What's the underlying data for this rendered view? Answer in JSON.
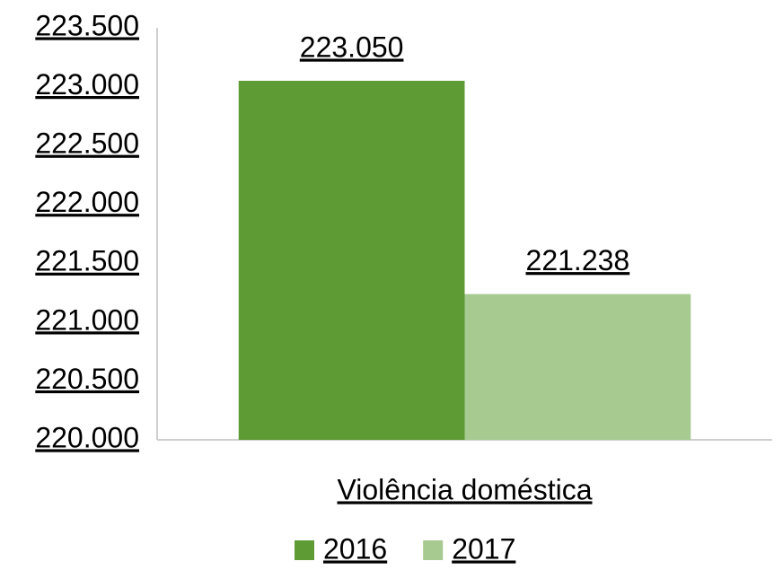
{
  "chart_data": {
    "type": "bar",
    "categories": [
      "Violência doméstica"
    ],
    "series": [
      {
        "name": "2016",
        "color": "#5f9b35",
        "values": [
          223050
        ],
        "value_labels": [
          "223.050"
        ]
      },
      {
        "name": "2017",
        "color": "#a6ca8f",
        "values": [
          221238
        ],
        "value_labels": [
          "221.238"
        ]
      }
    ],
    "ylim": [
      220000,
      223500
    ],
    "yticks": [
      {
        "value": 220000,
        "label": "220.000"
      },
      {
        "value": 220500,
        "label": "220.500"
      },
      {
        "value": 221000,
        "label": "221.000"
      },
      {
        "value": 221500,
        "label": "221.500"
      },
      {
        "value": 222000,
        "label": "222.000"
      },
      {
        "value": 222500,
        "label": "222.500"
      },
      {
        "value": 223000,
        "label": "223.000"
      },
      {
        "value": 223500,
        "label": "223.500"
      }
    ],
    "legend": "bottom"
  }
}
